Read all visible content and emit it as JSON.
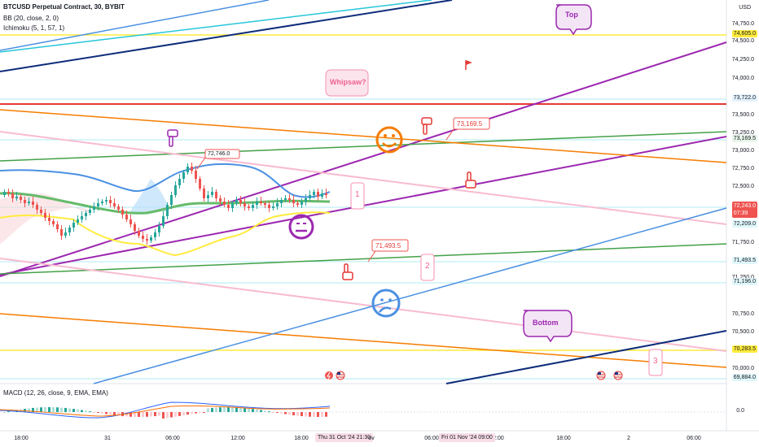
{
  "header": {
    "symbol_line": "BTCUSD Perpetual Contract, 30, BYBIT",
    "indicator1": "BB (20, close, 2, 0)",
    "indicator2": "Ichimoku (5, 1, 57, 1)"
  },
  "macd": {
    "label": "MACD (12, 26, close, 9, EMA, EMA)",
    "zero_label": "0.0"
  },
  "price_axis": {
    "currency": "USD",
    "ticks": [
      "74,750.0",
      "74,500.0",
      "74,250.0",
      "74,000.0",
      "73,500.0",
      "73,250.0",
      "73,000.0",
      "72,750.0",
      "72,500.0",
      "71,750.0",
      "71,250.0",
      "70,750.0",
      "70,500.0",
      "70,000.0"
    ],
    "tags": {
      "top_yellow": "74,605.0",
      "red": "73,722.0",
      "green_hi": "73,169.5",
      "current_price": "72,243.0",
      "countdown": "07:39",
      "mid_cyan": "72,209.0",
      "green_lo": "71,493.5",
      "low_cyan": "71,196.0",
      "bottom_yellow": "70,283.5",
      "lowest_cyan": "69,884.0"
    }
  },
  "time_axis": {
    "labels": [
      "18:00",
      "31",
      "06:00",
      "12:00",
      "18:00",
      "06:00",
      "12:00",
      "18:00",
      "2",
      "06:00"
    ],
    "highlight_1": "Thu 31 Oct '24   21:30",
    "highlight_1_suffix": "ov",
    "highlight_2": "Fri 01 Nov '24   09:00"
  },
  "annotations": {
    "top": "Top",
    "bottom": "Bottom",
    "whipsaw": "Whipsaw?",
    "wave1": "1",
    "wave2": "2",
    "wave3": "3",
    "price_label_a": "72,746.0",
    "price_label_b": "73,169.5",
    "price_label_c": "71,493.5"
  },
  "colors": {
    "up": "#26a69a",
    "down": "#ef5350",
    "purple": "#9c27b0",
    "orange": "#f57c00",
    "green": "#43a047",
    "pink": "#f8bbd0",
    "red": "#e53935",
    "yellow": "#ffeb3b",
    "cyan": "#b2ebf2",
    "navy": "#0d2c7a",
    "blue": "#4a90e2"
  }
}
